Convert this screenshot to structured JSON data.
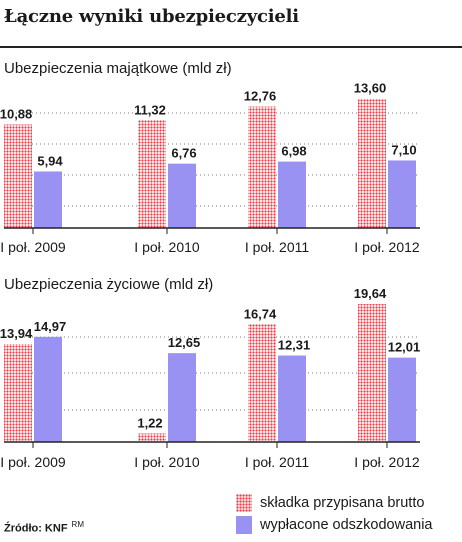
{
  "title": "Łączne wyniki ubezpieczycieli",
  "source": "Źródło: KNF",
  "credit": "RM",
  "colors": {
    "premium": "#e53945",
    "payout": "#9a92f2"
  },
  "legend": {
    "premium_label": "składka przypisana brutto",
    "payout_label": "wypłacone odszkodowania"
  },
  "chart_data": [
    {
      "type": "bar",
      "title": "Ubezpieczenia majątkowe (mld zł)",
      "categories": [
        "I poł. 2009",
        "I poł. 2010",
        "I poł. 2011",
        "I poł. 2012"
      ],
      "series": [
        {
          "name": "składka przypisana brutto",
          "values": [
            10.88,
            11.32,
            12.76,
            13.6
          ],
          "labels": [
            "10,88",
            "11,32",
            "12,76",
            "13,60"
          ]
        },
        {
          "name": "wypłacone odszkodowania",
          "values": [
            5.94,
            6.76,
            6.98,
            7.1
          ],
          "labels": [
            "5,94",
            "6,76",
            "6,98",
            "7,10"
          ]
        }
      ],
      "ylim": [
        0,
        14.5
      ],
      "grid": true
    },
    {
      "type": "bar",
      "title": "Ubezpieczenia życiowe (mld zł)",
      "categories": [
        "I poł. 2009",
        "I poł. 2010",
        "I poł. 2011",
        "I poł. 2012"
      ],
      "series": [
        {
          "name": "składka przypisana brutto",
          "values": [
            13.94,
            1.22,
            16.74,
            19.64
          ],
          "labels": [
            "13,94",
            "1,22",
            "16,74",
            "19,64"
          ]
        },
        {
          "name": "wypłacone odszkodowania",
          "values": [
            14.97,
            12.65,
            12.31,
            12.01
          ],
          "labels": [
            "14,97",
            "12,65",
            "12,31",
            "12,01"
          ]
        }
      ],
      "ylim": [
        0,
        20.5
      ],
      "grid": true
    }
  ]
}
